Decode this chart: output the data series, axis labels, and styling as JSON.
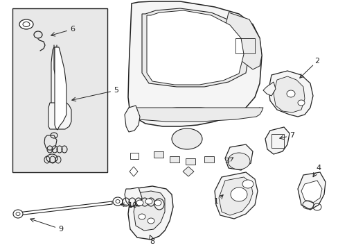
{
  "bg_color": "#ffffff",
  "fig_width": 4.89,
  "fig_height": 3.6,
  "dpi": 100,
  "lc": "#222222",
  "box_bg": "#e8e8e8",
  "part_fill": "#f5f5f5",
  "part_fill2": "#ebebeb"
}
